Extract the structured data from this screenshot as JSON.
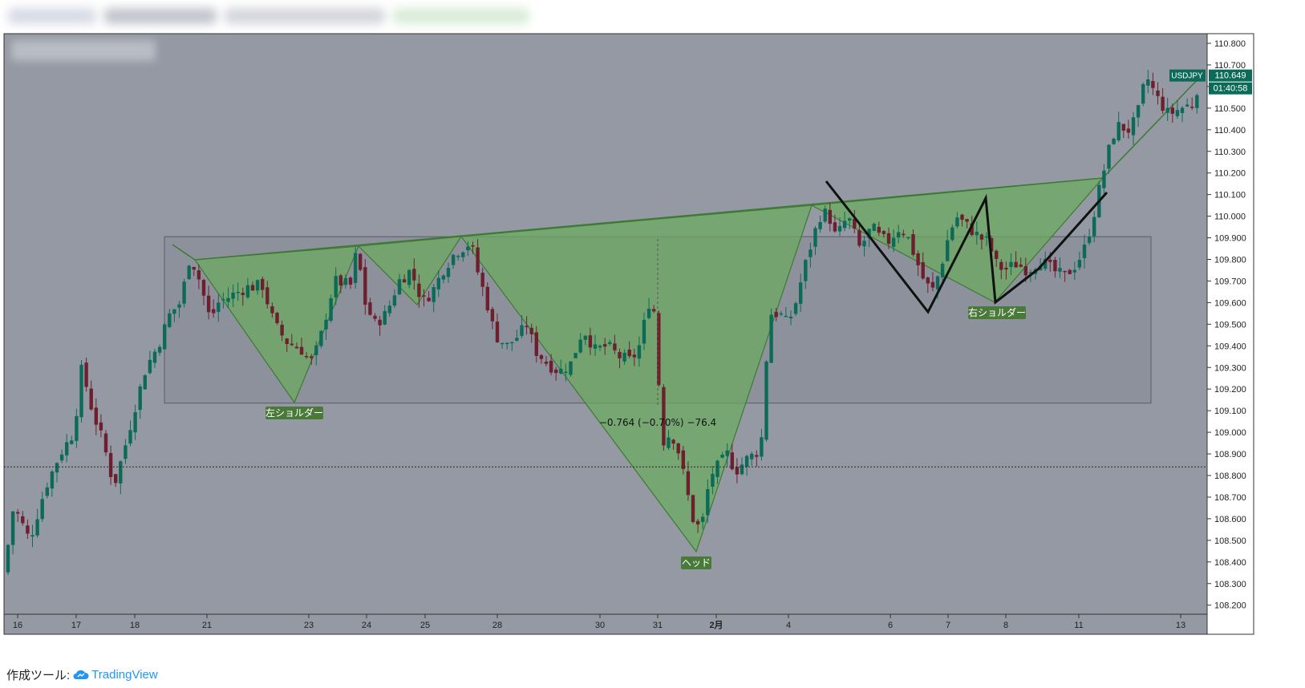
{
  "chart_data": {
    "type": "candlestick",
    "symbol": "USDJPY",
    "last_price": "110.649",
    "countdown": "01:40:58",
    "y_ticks": [
      "110.800",
      "110.700",
      "110.600",
      "110.500",
      "110.400",
      "110.300",
      "110.200",
      "110.100",
      "110.000",
      "109.900",
      "109.800",
      "109.700",
      "109.600",
      "109.500",
      "109.400",
      "109.300",
      "109.200",
      "109.100",
      "109.000",
      "108.900",
      "108.800",
      "108.700",
      "108.600",
      "108.500",
      "108.400",
      "108.300",
      "108.200"
    ],
    "ylim": [
      108.2,
      110.85
    ],
    "x_ticks": [
      "16",
      "17",
      "18",
      "21",
      "23",
      "24",
      "25",
      "28",
      "30",
      "31",
      "2月",
      "4",
      "6",
      "7",
      "8",
      "11",
      "13"
    ],
    "dotted_price_level": 108.84,
    "range_box": {
      "high": 109.905,
      "low": 109.135
    },
    "neckline": {
      "from": 109.8,
      "to": 110.17
    },
    "pattern_labels": {
      "left_shoulder": "左ショルダー",
      "head": "ヘッド",
      "right_shoulder": "右ショルダー"
    },
    "measure_label": "−0.764 (−0.70%) −76.4",
    "colors": {
      "bull": "#0c6b58",
      "bear": "#6e1f2d",
      "pattern_fill": "#6bab5e",
      "pattern_stroke": "#3d7a34",
      "label_bg": "#4a7a3a",
      "bg": "#9599a3"
    }
  },
  "footer": {
    "prefix": "作成ツール:",
    "brand": "TradingView"
  }
}
